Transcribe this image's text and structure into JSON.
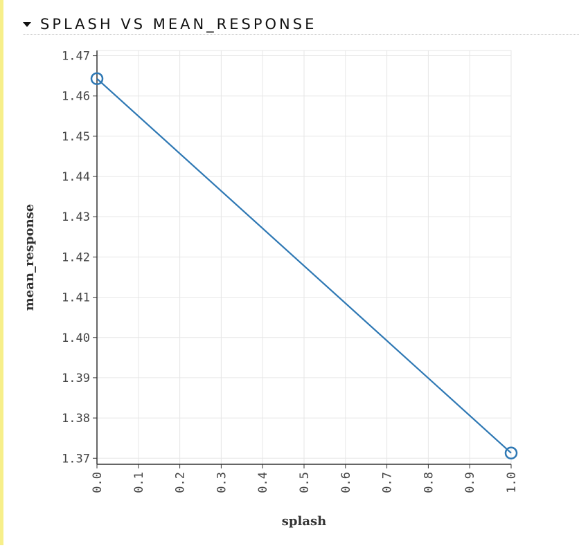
{
  "section": {
    "title": "SPLASH VS MEAN_RESPONSE",
    "caret_icon": "caret-down-icon"
  },
  "chart_data": {
    "type": "line",
    "x": [
      0.0,
      1.0
    ],
    "y": [
      1.4643,
      1.3713
    ],
    "xlabel": "splash",
    "ylabel": "mean_response",
    "xlim": [
      0.0,
      1.0
    ],
    "ylim": [
      1.3685,
      1.4713
    ],
    "xticks": [
      "0.0",
      "0.1",
      "0.2",
      "0.3",
      "0.4",
      "0.5",
      "0.6",
      "0.7",
      "0.8",
      "0.9",
      "1.0"
    ],
    "yticks": [
      "1.37",
      "1.38",
      "1.39",
      "1.40",
      "1.41",
      "1.42",
      "1.43",
      "1.44",
      "1.45",
      "1.46",
      "1.47"
    ],
    "grid": true,
    "line_color": "#2e78b4"
  }
}
